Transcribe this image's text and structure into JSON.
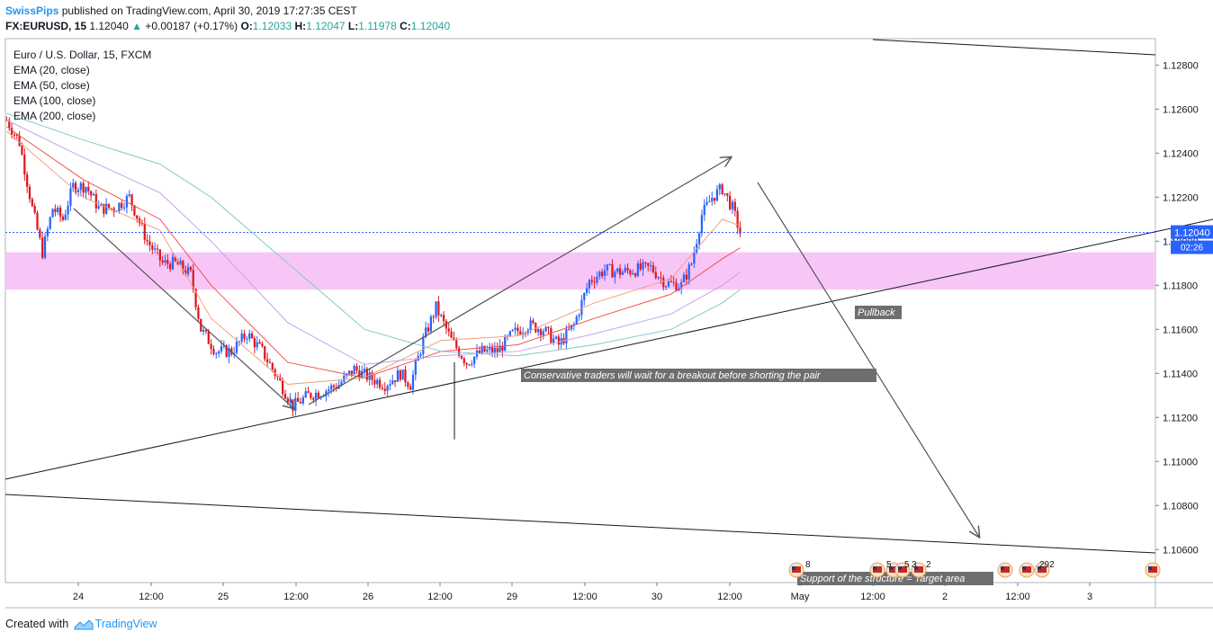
{
  "header": {
    "author": "SwissPips",
    "published_text": "published on TradingView.com, April 30, 2019 17:27:35 CEST",
    "symbol_line": "FX:EURUSD, 15",
    "last": "1.12040",
    "change": "+0.00187 (+0.17%)",
    "o_label": "O:",
    "o": "1.12033",
    "h_label": "H:",
    "h": "1.12047",
    "l_label": "L:",
    "l": "1.11978",
    "c_label": "C:",
    "c": "1.12040"
  },
  "legend": {
    "title": "Euro / U.S. Dollar, 15, FXCM",
    "ema20": "EMA (20, close)",
    "ema50": "EMA (50, close)",
    "ema100": "EMA (100, close)",
    "ema200": "EMA (200, close)"
  },
  "footer": {
    "prefix": "Created with",
    "brand": "TradingView"
  },
  "chart_data": {
    "type": "candlestick",
    "symbol": "EURUSD",
    "timeframe": "15",
    "y_axis_ticks": [
      1.128,
      1.126,
      1.124,
      1.122,
      1.12,
      1.118,
      1.116,
      1.114,
      1.112,
      1.11,
      1.108,
      1.106
    ],
    "y_tick_labels": [
      "1.12800",
      "1.12600",
      "1.12400",
      "1.12200",
      "1.12000",
      "1.11800",
      "1.11600",
      "1.11400",
      "1.11200",
      "1.11000",
      "1.10800",
      "1.10600"
    ],
    "ylim": [
      1.1045,
      1.1292
    ],
    "x_axis_ticks": [
      "24",
      "12:00",
      "25",
      "12:00",
      "26",
      "12:00",
      "29",
      "12:00",
      "30",
      "12:00",
      "May",
      "12:00",
      "2",
      "12:00",
      "3"
    ],
    "current_price_label": "1.12040",
    "countdown": "02:26",
    "zone": {
      "high": 1.1195,
      "low": 1.1178,
      "color": "#f8c6f6"
    },
    "price_path": [
      [
        0,
        1.1255
      ],
      [
        5,
        1.1245
      ],
      [
        10,
        1.1215
      ],
      [
        14,
        1.1195
      ],
      [
        18,
        1.1215
      ],
      [
        22,
        1.121
      ],
      [
        26,
        1.1225
      ],
      [
        31,
        1.1225
      ],
      [
        36,
        1.1215
      ],
      [
        42,
        1.1215
      ],
      [
        48,
        1.122
      ],
      [
        55,
        1.12
      ],
      [
        61,
        1.119
      ],
      [
        66,
        1.119
      ],
      [
        72,
        1.1185
      ],
      [
        76,
        1.116
      ],
      [
        82,
        1.115
      ],
      [
        88,
        1.115
      ],
      [
        94,
        1.1158
      ],
      [
        100,
        1.115
      ],
      [
        106,
        1.1138
      ],
      [
        112,
        1.1125
      ],
      [
        118,
        1.113
      ],
      [
        124,
        1.1132
      ],
      [
        130,
        1.1135
      ],
      [
        136,
        1.1142
      ],
      [
        142,
        1.1138
      ],
      [
        148,
        1.1135
      ],
      [
        154,
        1.114
      ],
      [
        158,
        1.1135
      ],
      [
        163,
        1.1155
      ],
      [
        168,
        1.117
      ],
      [
        174,
        1.1155
      ],
      [
        180,
        1.1145
      ],
      [
        186,
        1.115
      ],
      [
        192,
        1.115
      ],
      [
        198,
        1.1158
      ],
      [
        204,
        1.1162
      ],
      [
        210,
        1.116
      ],
      [
        216,
        1.1153
      ],
      [
        222,
        1.1162
      ],
      [
        228,
        1.1182
      ],
      [
        234,
        1.1187
      ],
      [
        240,
        1.1186
      ],
      [
        246,
        1.1187
      ],
      [
        252,
        1.1188
      ],
      [
        258,
        1.1181
      ],
      [
        264,
        1.118
      ],
      [
        268,
        1.119
      ],
      [
        272,
        1.1212
      ],
      [
        276,
        1.122
      ],
      [
        280,
        1.1224
      ],
      [
        284,
        1.1215
      ],
      [
        287,
        1.1204
      ]
    ],
    "emas": [
      {
        "name": "EMA (20, close)",
        "color": "#f2a07b",
        "values": [
          [
            0,
            1.125
          ],
          [
            30,
            1.122
          ],
          [
            60,
            1.1205
          ],
          [
            80,
            1.1165
          ],
          [
            110,
            1.1135
          ],
          [
            140,
            1.1138
          ],
          [
            170,
            1.1155
          ],
          [
            200,
            1.1157
          ],
          [
            230,
            1.1172
          ],
          [
            260,
            1.1183
          ],
          [
            280,
            1.121
          ],
          [
            287,
            1.1207
          ]
        ]
      },
      {
        "name": "EMA (50, close)",
        "color": "#ef5350",
        "values": [
          [
            0,
            1.1252
          ],
          [
            30,
            1.1228
          ],
          [
            60,
            1.121
          ],
          [
            80,
            1.118
          ],
          [
            110,
            1.1145
          ],
          [
            140,
            1.1138
          ],
          [
            170,
            1.115
          ],
          [
            200,
            1.1153
          ],
          [
            230,
            1.1165
          ],
          [
            260,
            1.1176
          ],
          [
            280,
            1.1192
          ],
          [
            287,
            1.1197
          ]
        ]
      },
      {
        "name": "EMA (100, close)",
        "color": "#c7a2f0",
        "values": [
          [
            0,
            1.1255
          ],
          [
            30,
            1.1238
          ],
          [
            60,
            1.1222
          ],
          [
            80,
            1.12
          ],
          [
            110,
            1.1163
          ],
          [
            140,
            1.1144
          ],
          [
            170,
            1.1148
          ],
          [
            200,
            1.115
          ],
          [
            230,
            1.1158
          ],
          [
            260,
            1.1167
          ],
          [
            280,
            1.118
          ],
          [
            287,
            1.1186
          ]
        ]
      },
      {
        "name": "EMA (200, close)",
        "color": "#80cbc4",
        "values": [
          [
            0,
            1.1258
          ],
          [
            30,
            1.1246
          ],
          [
            60,
            1.1235
          ],
          [
            80,
            1.122
          ],
          [
            110,
            1.119
          ],
          [
            140,
            1.116
          ],
          [
            170,
            1.115
          ],
          [
            200,
            1.1148
          ],
          [
            230,
            1.1153
          ],
          [
            260,
            1.116
          ],
          [
            280,
            1.1172
          ],
          [
            287,
            1.1178
          ]
        ]
      }
    ],
    "annotations": [
      {
        "text": "Conservative traders will wait for a breakout before shorting the pair"
      },
      {
        "text": "Pullback"
      },
      {
        "text": "Support of the structure = Target area"
      }
    ],
    "event_markers": [
      {
        "label": "8"
      },
      {
        "label": "5"
      },
      {
        "label": "5"
      },
      {
        "label": "3"
      },
      {
        "label": "2"
      },
      {
        "label": "292"
      }
    ]
  },
  "colors": {
    "up": "#2962ff",
    "down": "#e0151f",
    "price_line": "#2962ff",
    "tradingview": "#2196f3"
  }
}
